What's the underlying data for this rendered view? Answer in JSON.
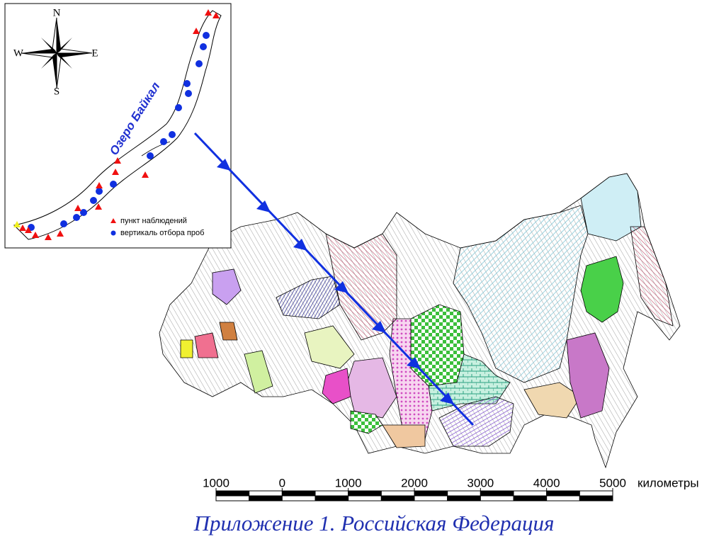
{
  "inset": {
    "compass": {
      "north": "N",
      "east": "E",
      "south": "S",
      "west": "W"
    },
    "lake_label": "Озеро Байкал",
    "legend": [
      "пункт наблюдений",
      "вертикаль отбора проб"
    ]
  },
  "scale_bar": {
    "ticks": [
      {
        "value": -1000,
        "label": "1000"
      },
      0,
      1000,
      2000,
      3000,
      4000,
      5000
    ],
    "unit": "километры"
  },
  "caption": "Приложение 1. Российская Федерация"
}
